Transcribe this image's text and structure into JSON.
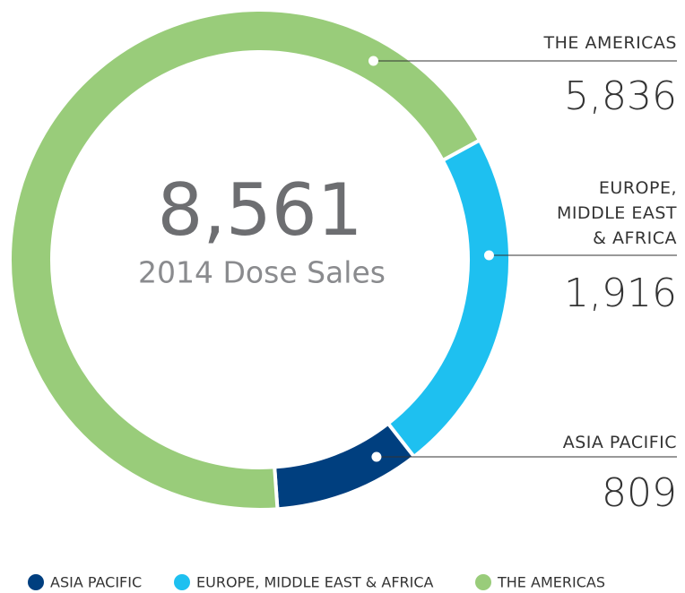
{
  "chart_data": {
    "type": "donut",
    "categories": [
      "ASIA PACIFIC",
      "EUROPE, MIDDLE EAST & AFRICA",
      "THE AMERICAS"
    ],
    "values": [
      809,
      1916,
      5836
    ],
    "value_labels": [
      "809",
      "1,916",
      "5,836"
    ],
    "colors": [
      "#003f7f",
      "#1ec0f0",
      "#99cc7a"
    ],
    "center_value": {
      "value": 8561,
      "label": "8,561"
    },
    "center_text": "2014 Dose Sales",
    "legend": "bottom"
  }
}
